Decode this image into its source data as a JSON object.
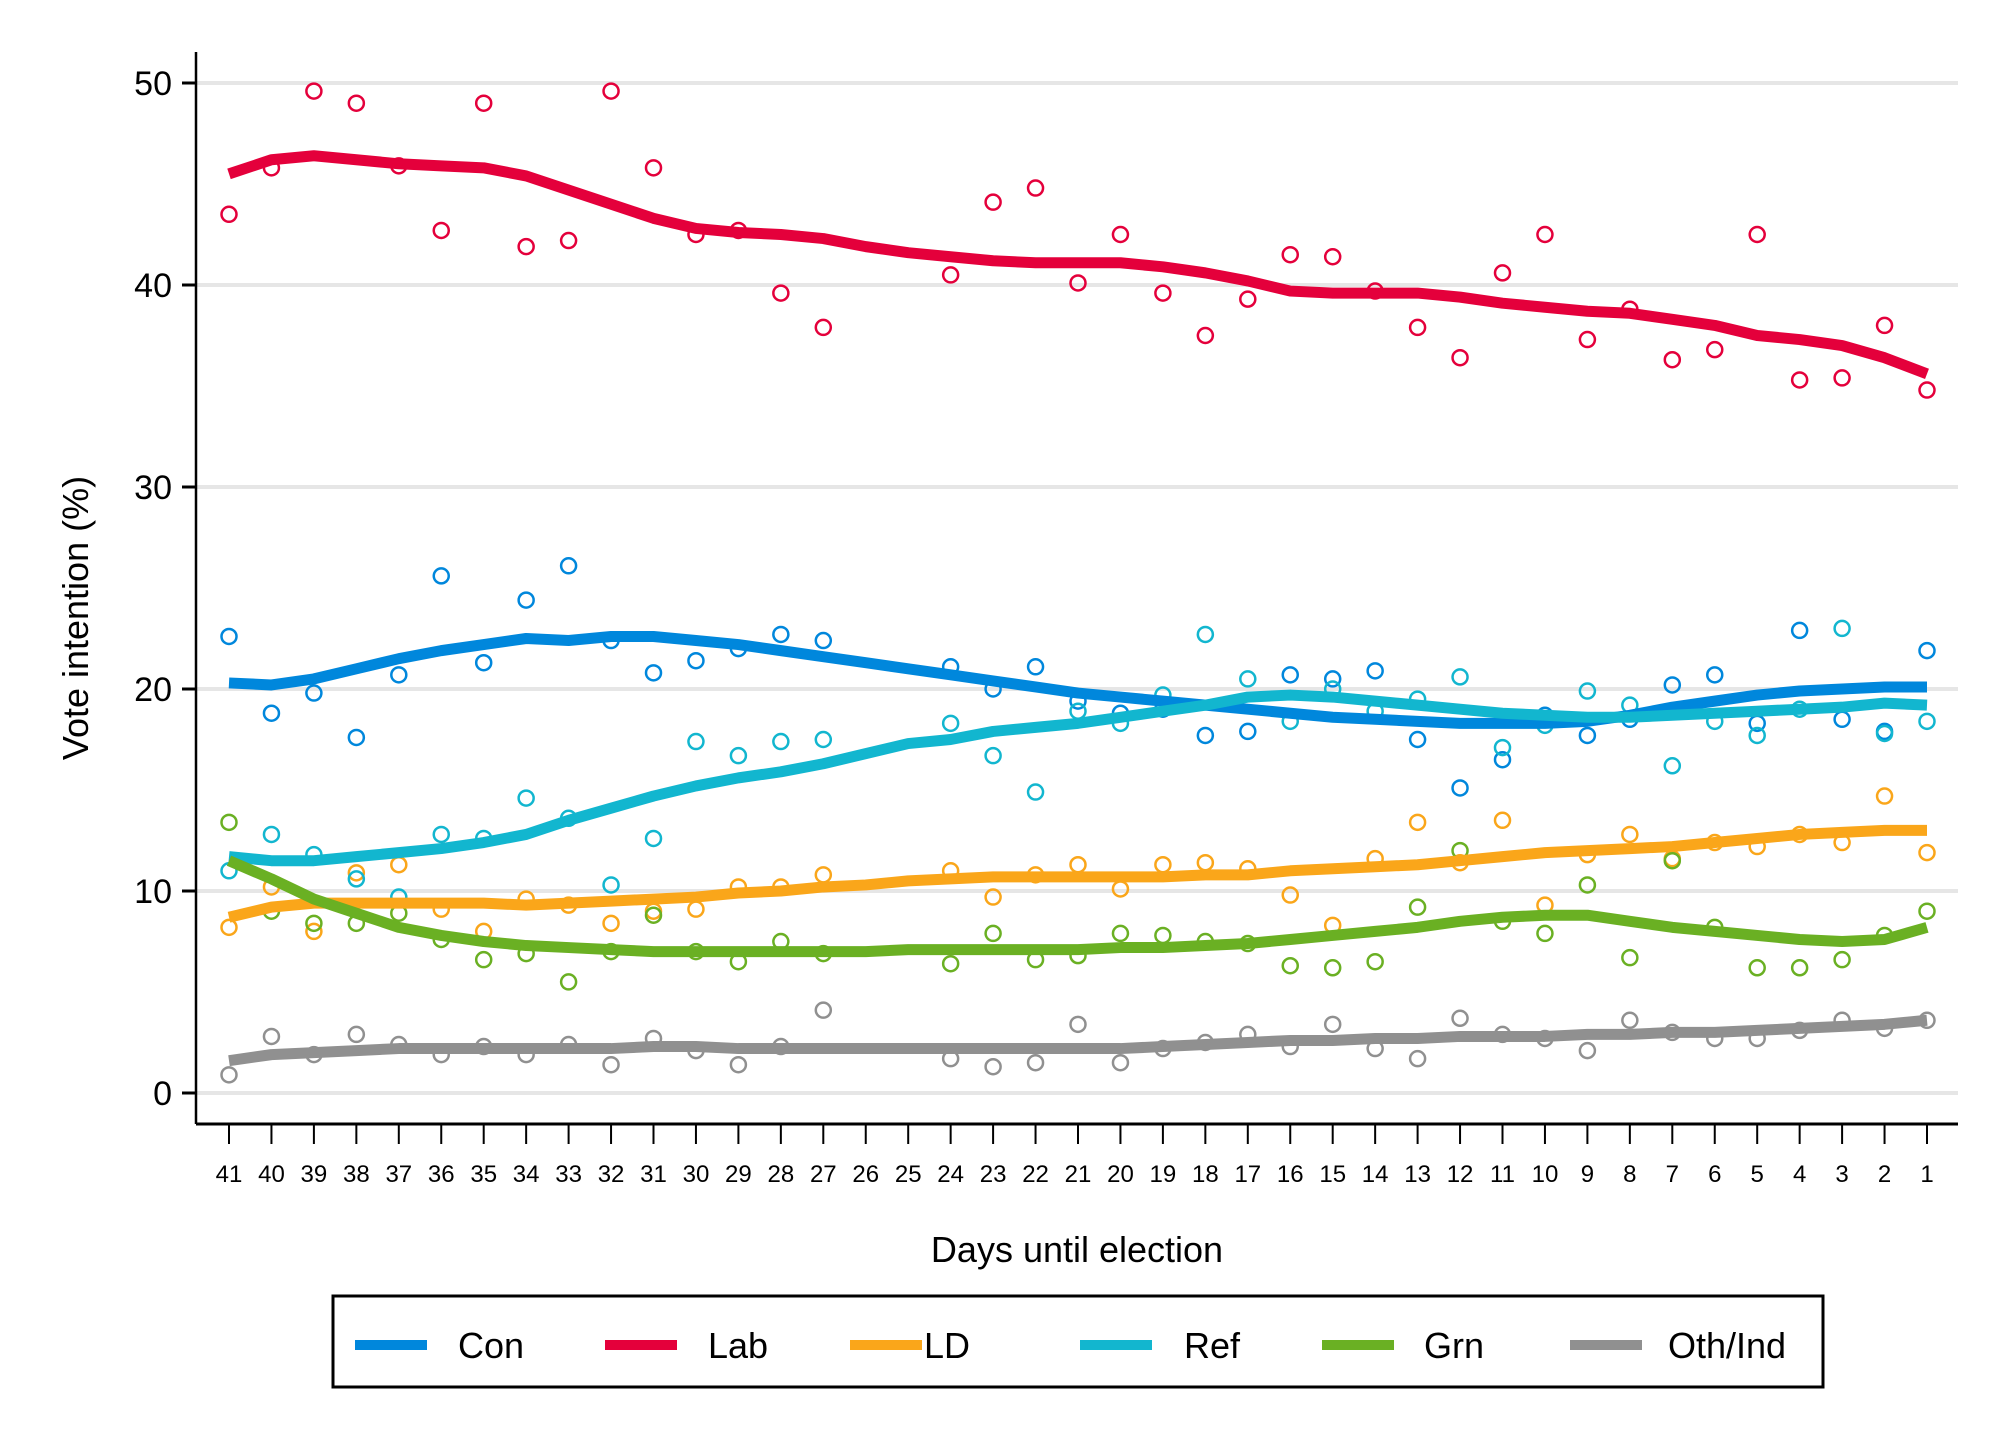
{
  "chart_data": {
    "type": "scatter",
    "title": "",
    "xlabel": "Days until election",
    "ylabel": "Vote intention (%)",
    "xlim": [
      41,
      1
    ],
    "ylim": [
      0,
      50
    ],
    "x_ticks": [
      41,
      40,
      39,
      38,
      37,
      36,
      35,
      34,
      33,
      32,
      31,
      30,
      29,
      28,
      27,
      26,
      25,
      24,
      23,
      22,
      21,
      20,
      19,
      18,
      17,
      16,
      15,
      14,
      13,
      12,
      11,
      10,
      9,
      8,
      7,
      6,
      5,
      4,
      3,
      2,
      1
    ],
    "y_ticks": [
      0,
      10,
      20,
      30,
      40,
      50
    ],
    "grid": true,
    "legend_position": "bottom",
    "poll_days": [
      41,
      40,
      39,
      38,
      37,
      36,
      35,
      34,
      33,
      32,
      31,
      30,
      29,
      28,
      27,
      24,
      23,
      22,
      21,
      20,
      19,
      18,
      17,
      16,
      15,
      14,
      13,
      12,
      11,
      10,
      9,
      8,
      7,
      6,
      5,
      4,
      3,
      2,
      1
    ],
    "trend_days": [
      41,
      40,
      39,
      38,
      37,
      36,
      35,
      34,
      33,
      32,
      31,
      30,
      29,
      28,
      27,
      26,
      25,
      24,
      23,
      22,
      21,
      20,
      19,
      18,
      17,
      16,
      15,
      14,
      13,
      12,
      11,
      10,
      9,
      8,
      7,
      6,
      5,
      4,
      3,
      2,
      1
    ],
    "series": [
      {
        "name": "Con",
        "color": "#0087DC",
        "points": [
          22.6,
          18.8,
          19.8,
          17.6,
          20.7,
          25.6,
          21.3,
          24.4,
          26.1,
          22.4,
          20.8,
          21.4,
          22.0,
          22.7,
          22.4,
          21.1,
          20.0,
          21.1,
          19.4,
          18.8,
          19.0,
          17.7,
          17.9,
          20.7,
          20.5,
          20.9,
          17.5,
          15.1,
          16.5,
          18.7,
          17.7,
          18.5,
          20.2,
          20.7,
          18.3,
          22.9,
          18.5,
          17.9,
          21.9
        ],
        "trend": [
          20.3,
          20.2,
          20.5,
          21.0,
          21.5,
          21.9,
          22.2,
          22.5,
          22.4,
          22.6,
          22.6,
          22.4,
          22.2,
          21.9,
          21.6,
          21.3,
          21.0,
          20.7,
          20.4,
          20.1,
          19.8,
          19.6,
          19.4,
          19.2,
          19.0,
          18.8,
          18.6,
          18.5,
          18.4,
          18.3,
          18.3,
          18.3,
          18.4,
          18.7,
          19.1,
          19.4,
          19.7,
          19.9,
          20.0,
          20.1,
          20.1
        ]
      },
      {
        "name": "Lab",
        "color": "#E4003B",
        "points": [
          43.5,
          45.8,
          49.6,
          49.0,
          45.9,
          42.7,
          49.0,
          41.9,
          42.2,
          49.6,
          45.8,
          42.5,
          42.7,
          39.6,
          37.9,
          40.5,
          44.1,
          44.8,
          40.1,
          42.5,
          39.6,
          37.5,
          39.3,
          41.5,
          41.4,
          39.7,
          37.9,
          36.4,
          40.6,
          42.5,
          37.3,
          38.8,
          36.3,
          36.8,
          42.5,
          35.3,
          35.4,
          38.0,
          34.8
        ],
        "trend": [
          45.5,
          46.2,
          46.4,
          46.2,
          46.0,
          45.9,
          45.8,
          45.4,
          44.7,
          44.0,
          43.3,
          42.8,
          42.6,
          42.5,
          42.3,
          41.9,
          41.6,
          41.4,
          41.2,
          41.1,
          41.1,
          41.1,
          40.9,
          40.6,
          40.2,
          39.7,
          39.6,
          39.6,
          39.6,
          39.4,
          39.1,
          38.9,
          38.7,
          38.6,
          38.3,
          38.0,
          37.5,
          37.3,
          37.0,
          36.4,
          35.6
        ]
      },
      {
        "name": "LD",
        "color": "#FAA61A",
        "points": [
          8.2,
          10.2,
          8.0,
          10.9,
          11.3,
          9.1,
          8.0,
          9.6,
          9.3,
          8.4,
          9.0,
          9.1,
          10.2,
          10.2,
          10.8,
          11.0,
          9.7,
          10.8,
          11.3,
          10.1,
          11.3,
          11.4,
          11.1,
          9.8,
          8.3,
          11.6,
          13.4,
          11.4,
          13.5,
          9.3,
          11.8,
          12.8,
          11.6,
          12.4,
          12.2,
          12.8,
          12.4,
          14.7,
          11.9
        ],
        "trend": [
          8.7,
          9.2,
          9.4,
          9.4,
          9.4,
          9.4,
          9.4,
          9.3,
          9.4,
          9.5,
          9.6,
          9.7,
          9.9,
          10.0,
          10.2,
          10.3,
          10.5,
          10.6,
          10.7,
          10.7,
          10.7,
          10.7,
          10.7,
          10.8,
          10.8,
          11.0,
          11.1,
          11.2,
          11.3,
          11.5,
          11.7,
          11.9,
          12.0,
          12.1,
          12.2,
          12.4,
          12.6,
          12.8,
          12.9,
          13.0,
          13.0
        ]
      },
      {
        "name": "Ref",
        "color": "#12B6CF",
        "points": [
          11.0,
          12.8,
          11.8,
          10.6,
          9.7,
          12.8,
          12.6,
          14.6,
          13.6,
          10.3,
          12.6,
          17.4,
          16.7,
          17.4,
          17.5,
          18.3,
          16.7,
          14.9,
          18.9,
          18.3,
          19.7,
          22.7,
          20.5,
          18.4,
          20.0,
          18.9,
          19.5,
          20.6,
          17.1,
          18.2,
          19.9,
          19.2,
          16.2,
          18.4,
          17.7,
          19.0,
          23.0,
          17.8,
          18.4
        ],
        "trend": [
          11.7,
          11.5,
          11.5,
          11.7,
          11.9,
          12.1,
          12.4,
          12.8,
          13.5,
          14.1,
          14.7,
          15.2,
          15.6,
          15.9,
          16.3,
          16.8,
          17.3,
          17.5,
          17.9,
          18.1,
          18.3,
          18.6,
          18.9,
          19.2,
          19.6,
          19.7,
          19.6,
          19.4,
          19.2,
          19.0,
          18.8,
          18.7,
          18.6,
          18.6,
          18.7,
          18.8,
          18.9,
          19.0,
          19.1,
          19.3,
          19.2
        ]
      },
      {
        "name": "Grn",
        "color": "#6AB023",
        "points": [
          13.4,
          9.0,
          8.4,
          8.4,
          8.9,
          7.6,
          6.6,
          6.9,
          5.5,
          7.0,
          8.8,
          7.0,
          6.5,
          7.5,
          6.9,
          6.4,
          7.9,
          6.6,
          6.8,
          7.9,
          7.8,
          7.5,
          7.4,
          6.3,
          6.2,
          6.5,
          9.2,
          12.0,
          8.5,
          7.9,
          10.3,
          6.7,
          11.5,
          8.2,
          6.2,
          6.2,
          6.6,
          7.8,
          9.0
        ],
        "trend": [
          11.5,
          10.6,
          9.6,
          8.9,
          8.2,
          7.8,
          7.5,
          7.3,
          7.2,
          7.1,
          7.0,
          7.0,
          7.0,
          7.0,
          7.0,
          7.0,
          7.1,
          7.1,
          7.1,
          7.1,
          7.1,
          7.2,
          7.2,
          7.3,
          7.4,
          7.6,
          7.8,
          8.0,
          8.2,
          8.5,
          8.7,
          8.8,
          8.8,
          8.5,
          8.2,
          8.0,
          7.8,
          7.6,
          7.5,
          7.6,
          8.2
        ]
      },
      {
        "name": "Oth/Ind",
        "color": "#909090",
        "points": [
          0.9,
          2.8,
          1.9,
          2.9,
          2.4,
          1.9,
          2.3,
          1.9,
          2.4,
          1.4,
          2.7,
          2.1,
          1.4,
          2.3,
          4.1,
          1.7,
          1.3,
          1.5,
          3.4,
          1.5,
          2.2,
          2.5,
          2.9,
          2.3,
          3.4,
          2.2,
          1.7,
          3.7,
          2.9,
          2.7,
          2.1,
          3.6,
          3.0,
          2.7,
          2.7,
          3.1,
          3.6,
          3.2,
          3.6
        ],
        "trend": [
          1.6,
          1.9,
          2.0,
          2.1,
          2.2,
          2.2,
          2.2,
          2.2,
          2.2,
          2.2,
          2.3,
          2.3,
          2.2,
          2.2,
          2.2,
          2.2,
          2.2,
          2.2,
          2.2,
          2.2,
          2.2,
          2.2,
          2.3,
          2.4,
          2.5,
          2.6,
          2.6,
          2.7,
          2.7,
          2.8,
          2.8,
          2.8,
          2.9,
          2.9,
          3.0,
          3.0,
          3.1,
          3.2,
          3.3,
          3.4,
          3.6
        ]
      }
    ]
  }
}
